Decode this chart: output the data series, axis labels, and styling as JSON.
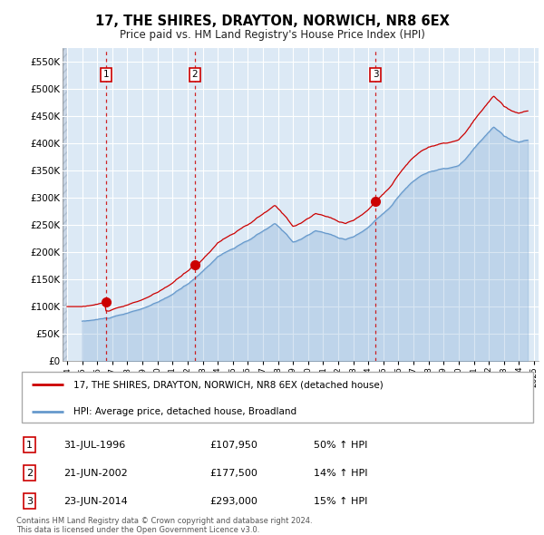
{
  "title": "17, THE SHIRES, DRAYTON, NORWICH, NR8 6EX",
  "subtitle": "Price paid vs. HM Land Registry's House Price Index (HPI)",
  "ylim": [
    0,
    575000
  ],
  "yticks": [
    0,
    50000,
    100000,
    150000,
    200000,
    250000,
    300000,
    350000,
    400000,
    450000,
    500000,
    550000
  ],
  "ytick_labels": [
    "£0",
    "£50K",
    "£100K",
    "£150K",
    "£200K",
    "£250K",
    "£300K",
    "£350K",
    "£400K",
    "£450K",
    "£500K",
    "£550K"
  ],
  "transactions": [
    {
      "num": 1,
      "date": "31-JUL-1996",
      "price": 107950,
      "pct": "50% ↑ HPI",
      "year": 1996.58
    },
    {
      "num": 2,
      "date": "21-JUN-2002",
      "price": 177500,
      "pct": "14% ↑ HPI",
      "year": 2002.47
    },
    {
      "num": 3,
      "date": "23-JUN-2014",
      "price": 293000,
      "pct": "15% ↑ HPI",
      "year": 2014.47
    }
  ],
  "legend_label_red": "17, THE SHIRES, DRAYTON, NORWICH, NR8 6EX (detached house)",
  "legend_label_blue": "HPI: Average price, detached house, Broadland",
  "copyright": "Contains HM Land Registry data © Crown copyright and database right 2024.\nThis data is licensed under the Open Government Licence v3.0.",
  "red_color": "#cc0000",
  "blue_color": "#6699cc",
  "plot_bg": "#dce9f5",
  "xlim_left": 1993.7,
  "xlim_right": 2025.3,
  "hatch_end": 1994.08
}
